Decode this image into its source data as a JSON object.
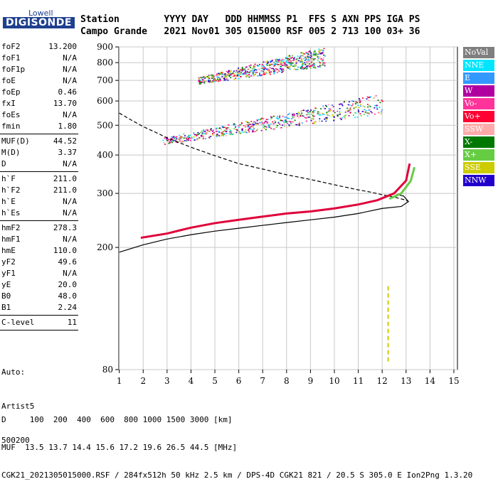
{
  "logo": {
    "top": "Lowell",
    "main": "DIGISONDE"
  },
  "header": {
    "line1": "Station        YYYY DAY   DDD HHMMSS P1  FFS S AXN PPS IGA PS",
    "line2": "Campo Grande   2021 Nov01 305 015000 RSF 005 2 713 100 03+ 36"
  },
  "params": [
    {
      "label": "foF2",
      "value": "13.200"
    },
    {
      "label": "foF1",
      "value": "N/A"
    },
    {
      "label": "foF1p",
      "value": "N/A"
    },
    {
      "label": "foE",
      "value": "N/A"
    },
    {
      "label": "foEp",
      "value": "0.46"
    },
    {
      "label": "fxI",
      "value": "13.70"
    },
    {
      "label": "foEs",
      "value": "N/A"
    },
    {
      "label": "fmin",
      "value": "1.80"
    },
    {
      "sep": true
    },
    {
      "label": "MUF(D)",
      "value": "44.52"
    },
    {
      "label": "M(D)",
      "value": "3.37"
    },
    {
      "label": "D",
      "value": "N/A"
    },
    {
      "sep": true
    },
    {
      "label": "h`F",
      "value": "211.0"
    },
    {
      "label": "h`F2",
      "value": "211.0"
    },
    {
      "label": "h`E",
      "value": "N/A"
    },
    {
      "label": "h`Es",
      "value": "N/A"
    },
    {
      "sep": true
    },
    {
      "label": "hmF2",
      "value": "278.3"
    },
    {
      "label": "hmF1",
      "value": "N/A"
    },
    {
      "label": "hmE",
      "value": "110.0"
    },
    {
      "label": "yF2",
      "value": "49.6"
    },
    {
      "label": "yF1",
      "value": "N/A"
    },
    {
      "label": "yE",
      "value": "20.0"
    },
    {
      "label": "B0",
      "value": "48.0"
    },
    {
      "label": "B1",
      "value": "2.24"
    },
    {
      "sep": true
    },
    {
      "label": "C-level",
      "value": "11"
    },
    {
      "sep": true
    }
  ],
  "auto": {
    "line1": "Auto:",
    "line2": "Artist5",
    "line3": "500200"
  },
  "footer": {
    "line1": "D     100  200  400  600  800 1000 1500 3000 [km]",
    "line2": "MUF  13.5 13.7 14.4 15.6 17.2 19.6 26.5 44.5 [MHz]",
    "line3": "CGK21_2021305015000.RSF / 284fx512h 50 kHz 2.5 km / DPS-4D CGK21 821 / 20.5 S 305.0 E Ion2Png 1.3.20"
  },
  "legend": [
    {
      "label": "NoVal",
      "color": "#7f7f7f"
    },
    {
      "label": "NNE",
      "color": "#00e5ff"
    },
    {
      "label": "E",
      "color": "#3399ff"
    },
    {
      "label": "W",
      "color": "#b000a0"
    },
    {
      "label": "Vo-",
      "color": "#ff3399"
    },
    {
      "label": "Vo+",
      "color": "#ff0033"
    },
    {
      "label": "SSW",
      "color": "#ffaaaa"
    },
    {
      "label": "X-",
      "color": "#007700"
    },
    {
      "label": "X+",
      "color": "#66cc44"
    },
    {
      "label": "SSE",
      "color": "#cccc00"
    },
    {
      "label": "NNW",
      "color": "#2200cc"
    }
  ],
  "chart_data": {
    "type": "scatter",
    "x_ticks": [
      1,
      2,
      3,
      4,
      5,
      6,
      7,
      8,
      9,
      10,
      11,
      12,
      13,
      14,
      15
    ],
    "y_ticks": [
      80,
      200,
      300,
      400,
      500,
      600,
      700,
      800,
      900
    ],
    "xlim": [
      0.98,
      15.15
    ],
    "ylim": [
      80,
      900
    ],
    "y_scale": "log",
    "grid": true,
    "series": [
      {
        "name": "Vo+",
        "color": "#e0003a",
        "x": [
          1.9,
          3,
          4,
          5,
          6,
          7,
          8,
          9,
          10,
          11,
          11.8,
          12.5,
          13,
          13.15
        ],
        "y": [
          215,
          222,
          232,
          240,
          246,
          252,
          258,
          262,
          268,
          276,
          285,
          300,
          330,
          375
        ]
      },
      {
        "name": "X+",
        "color": "#66cc44",
        "x": [
          12.3,
          12.8,
          13.2,
          13.35
        ],
        "y": [
          288,
          300,
          330,
          365
        ]
      },
      {
        "name": "SSE",
        "color": "#cccc00",
        "x": [
          12.25,
          12.25
        ],
        "y": [
          85,
          150
        ]
      }
    ],
    "lines": [
      {
        "style": "solid",
        "color": "#000000",
        "x": [
          1,
          2,
          3,
          4,
          5,
          6,
          7,
          8,
          9,
          10,
          11,
          12,
          12.8,
          13.1,
          12.9,
          12.6
        ],
        "y": [
          193,
          204,
          213,
          220,
          226,
          231,
          236,
          241,
          246,
          251,
          258,
          268,
          272,
          282,
          294,
          298
        ]
      },
      {
        "style": "dashed",
        "color": "#000000",
        "x": [
          1,
          1.5,
          2,
          2.5,
          3,
          4,
          5,
          6,
          7,
          8,
          9,
          10,
          11,
          11.5,
          12,
          12.5,
          13,
          13.1
        ],
        "y": [
          548,
          520,
          495,
          475,
          455,
          424,
          398,
          375,
          360,
          345,
          333,
          320,
          308,
          303,
          297,
          292,
          285,
          282
        ]
      }
    ],
    "scatter_clusters": [
      {
        "x": [
          4.3,
          9.6
        ],
        "y": [
          700,
          840
        ]
      },
      {
        "x": [
          2.8,
          12.0
        ],
        "y": [
          445,
          590
        ]
      }
    ]
  }
}
